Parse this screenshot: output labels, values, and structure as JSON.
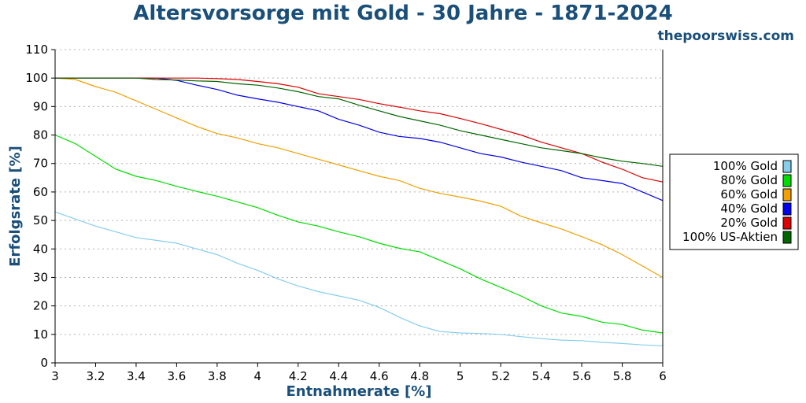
{
  "chart_data": {
    "type": "line",
    "title": "Altersvorsorge mit Gold - 30 Jahre - 1871-2024",
    "source": "thepoorswiss.com",
    "xlabel": "Entnahmerate [%]",
    "ylabel": "Erfolgsrate [%]",
    "xlim": [
      3,
      6
    ],
    "ylim": [
      0,
      110
    ],
    "x_ticks": [
      3,
      3.2,
      3.4,
      3.6,
      3.8,
      4,
      4.2,
      4.4,
      4.6,
      4.8,
      5,
      5.2,
      5.4,
      5.6,
      5.8,
      6
    ],
    "x_tick_labels": [
      "3",
      "3.2",
      "3.4",
      "3.6",
      "3.8",
      "4",
      "4.2",
      "4.4",
      "4.6",
      "4.8",
      "5",
      "5.2",
      "5.4",
      "5.6",
      "5.8",
      "6"
    ],
    "y_ticks": [
      0,
      10,
      20,
      30,
      40,
      50,
      60,
      70,
      80,
      90,
      100,
      110
    ],
    "y_tick_labels": [
      "0",
      "10",
      "20",
      "30",
      "40",
      "50",
      "60",
      "70",
      "80",
      "90",
      "100",
      "110"
    ],
    "grid": "horizontal-dotted",
    "legend_position": "right",
    "x": [
      3.0,
      3.1,
      3.2,
      3.3,
      3.4,
      3.5,
      3.6,
      3.7,
      3.8,
      3.9,
      4.0,
      4.1,
      4.2,
      4.3,
      4.4,
      4.5,
      4.6,
      4.7,
      4.8,
      4.9,
      5.0,
      5.1,
      5.2,
      5.3,
      5.4,
      5.5,
      5.6,
      5.7,
      5.8,
      5.9,
      6.0
    ],
    "series": [
      {
        "name": "100% Gold",
        "color": "#87ceeb",
        "values": [
          53,
          50.5,
          48,
          46,
          44,
          43,
          42,
          40,
          38,
          35,
          32.5,
          29.5,
          27,
          25,
          23.5,
          22,
          19.5,
          16,
          13,
          11,
          10.5,
          10.3,
          10,
          9.2,
          8.5,
          8,
          7.8,
          7.2,
          6.8,
          6.3,
          6
        ]
      },
      {
        "name": "80% Gold",
        "color": "#00dd00",
        "values": [
          80,
          77,
          72.5,
          68,
          65.5,
          64,
          62,
          60.2,
          58.5,
          56.5,
          54.5,
          51.8,
          49.5,
          48,
          46,
          44.3,
          42,
          40.2,
          39,
          36,
          33,
          29.5,
          26.5,
          23.5,
          20,
          17.5,
          16.3,
          14.3,
          13.5,
          11.5,
          10.5
        ]
      },
      {
        "name": "60% Gold",
        "color": "#f0a000",
        "values": [
          100,
          99.5,
          97,
          95,
          92,
          89,
          86,
          83,
          80.5,
          79,
          77,
          75.5,
          73.5,
          71.5,
          69.5,
          67.5,
          65.5,
          64,
          61.3,
          59.5,
          58.2,
          56.8,
          55,
          51.5,
          49.2,
          47,
          44.3,
          41.5,
          38,
          34,
          30
        ]
      },
      {
        "name": "40% Gold",
        "color": "#0000ee",
        "values": [
          100,
          100,
          100,
          100,
          100,
          100,
          99.2,
          97.5,
          96,
          94,
          92.7,
          91.5,
          90,
          88.5,
          85.5,
          83.5,
          81,
          79.5,
          78.8,
          77.5,
          75.5,
          73.5,
          72.3,
          70.5,
          69,
          67.5,
          65,
          64,
          63,
          60,
          57
        ]
      },
      {
        "name": "20% Gold",
        "color": "#dd0000",
        "values": [
          100,
          100,
          100,
          100,
          100,
          100,
          100,
          100,
          99.8,
          99.5,
          98.8,
          98,
          96.8,
          94.5,
          93.5,
          92.5,
          91,
          89.8,
          88.5,
          87.5,
          85.8,
          84,
          82,
          80,
          77.5,
          75.5,
          73.5,
          70.5,
          68,
          65,
          63.5
        ]
      },
      {
        "name": "100% US-Aktien",
        "color": "#006600",
        "values": [
          100,
          100,
          100,
          100,
          100,
          99.5,
          99.3,
          99,
          98.8,
          98,
          97.5,
          96.5,
          95.2,
          93.5,
          92.7,
          90.5,
          88.5,
          86.5,
          85,
          83.5,
          81.5,
          80,
          78.5,
          77,
          75.5,
          74.5,
          73.5,
          72,
          70.8,
          70,
          69
        ]
      }
    ]
  }
}
